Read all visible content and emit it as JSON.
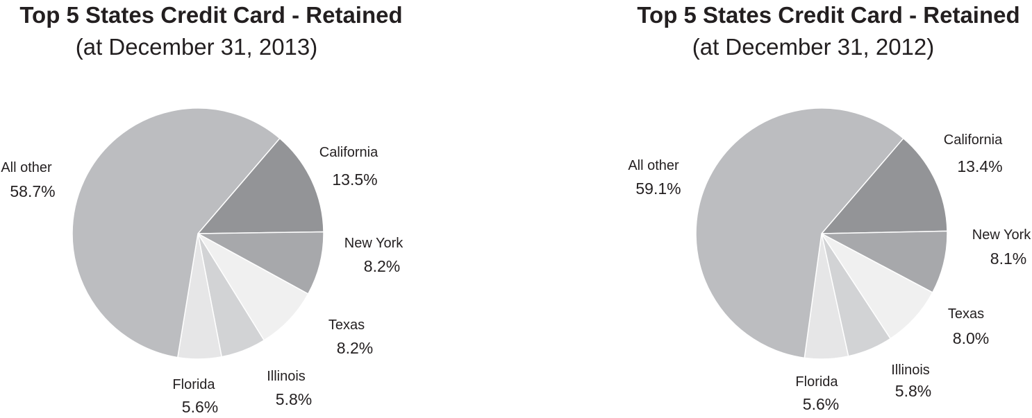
{
  "chart_data": [
    {
      "type": "pie",
      "title": "Top 5 States Credit Card - Retained",
      "subtitle": "(at December 31, 2013)",
      "slices": [
        {
          "label": "California",
          "value_label": "13.5%",
          "value": 13.5,
          "color": "#939497"
        },
        {
          "label": "New York",
          "value_label": "8.2%",
          "value": 8.2,
          "color": "#a7a8ab"
        },
        {
          "label": "Texas",
          "value_label": "8.2%",
          "value": 8.2,
          "color": "#f0f0f0"
        },
        {
          "label": "Illinois",
          "value_label": "5.8%",
          "value": 5.8,
          "color": "#d2d3d5"
        },
        {
          "label": "Florida",
          "value_label": "5.6%",
          "value": 5.6,
          "color": "#e6e6e7"
        },
        {
          "label": "All other",
          "value_label": "58.7%",
          "value": 58.7,
          "color": "#bcbdc0"
        }
      ]
    },
    {
      "type": "pie",
      "title": "Top 5 States Credit Card - Retained",
      "subtitle": "(at December 31, 2012)",
      "slices": [
        {
          "label": "California",
          "value_label": "13.4%",
          "value": 13.4,
          "color": "#939497"
        },
        {
          "label": "New York",
          "value_label": "8.1%",
          "value": 8.1,
          "color": "#a7a8ab"
        },
        {
          "label": "Texas",
          "value_label": "8.0%",
          "value": 8.0,
          "color": "#f0f0f0"
        },
        {
          "label": "Illinois",
          "value_label": "5.8%",
          "value": 5.8,
          "color": "#d2d3d5"
        },
        {
          "label": "Florida",
          "value_label": "5.6%",
          "value": 5.6,
          "color": "#e6e6e7"
        },
        {
          "label": "All other",
          "value_label": "59.1%",
          "value": 59.1,
          "color": "#bcbdc0"
        }
      ]
    }
  ]
}
